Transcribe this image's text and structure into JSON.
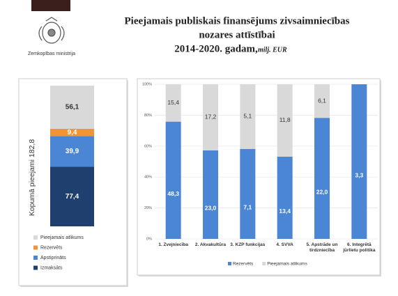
{
  "header": {
    "title_lines": [
      "Pieejamais publiskais finansējums zivsaimniecības",
      "nozares attīstībai"
    ],
    "title_years": "2014-2020. gadam,",
    "title_unit": "milj. EUR",
    "ministry": "Zemkopības ministrija"
  },
  "chart_data": [
    {
      "type": "stacked_bar",
      "y_label": "Kopumā pieejami 182,8",
      "ylim": [
        0,
        182.8
      ],
      "categories": [
        null
      ],
      "series": [
        {
          "name": "Izmaksāts",
          "color": "#1f3f6e",
          "values": [
            77.4
          ],
          "value_labels": [
            "77,4"
          ]
        },
        {
          "name": "Apstiprināts",
          "color": "#4a86d4",
          "values": [
            39.9
          ],
          "value_labels": [
            "39,9"
          ]
        },
        {
          "name": "Rezervēts",
          "color": "#f0943a",
          "values": [
            9.4
          ],
          "value_labels": [
            "9,4"
          ]
        },
        {
          "name": "Pieejamais atlikums",
          "color": "#d9d9d9",
          "values": [
            56.1
          ],
          "value_labels": [
            "56,1"
          ]
        }
      ],
      "legend": "bottom-reversed"
    },
    {
      "type": "stacked_percent_bar",
      "ylim": [
        0,
        100
      ],
      "yticks": [
        {
          "value": 0,
          "label": "0%"
        },
        {
          "value": 20,
          "label": "20%"
        },
        {
          "value": 40,
          "label": "40%"
        },
        {
          "value": 60,
          "label": "60%"
        },
        {
          "value": 80,
          "label": "80%"
        },
        {
          "value": 100,
          "label": "100%"
        }
      ],
      "grid": true,
      "categories": [
        "1. Zvejniecība",
        "2. Akvakultūra",
        "3. KZP funkcijas",
        "4. SVVA",
        "5. Apstrāde un tirdzniecība",
        "6. Integrētā jūrlietu politika"
      ],
      "series": [
        {
          "name": "Rezervēts",
          "color": "#4a86d4",
          "values": [
            48.3,
            23.0,
            7.1,
            13.4,
            22.0,
            3.3
          ],
          "value_labels": [
            "48,3",
            "23,0",
            "7,1",
            "13,4",
            "22,0",
            "3,3"
          ]
        },
        {
          "name": "Pieejamais atlikums",
          "color": "#d9d9d9",
          "values": [
            15.4,
            17.2,
            5.1,
            11.8,
            6.1,
            null
          ],
          "value_labels": [
            "15,4",
            "17,2",
            "5,1",
            "11,8",
            "6,1",
            null
          ]
        }
      ],
      "legend": "bottom"
    }
  ]
}
